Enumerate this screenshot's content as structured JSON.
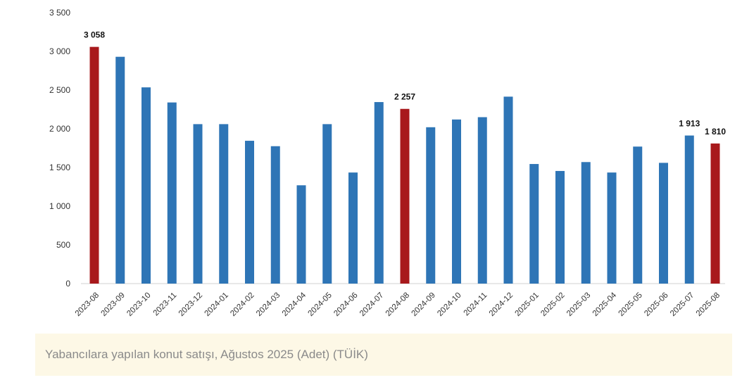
{
  "chart_data": {
    "type": "bar",
    "title": "",
    "xlabel": "",
    "ylabel": "",
    "ylim": [
      0,
      3500
    ],
    "yticks": [
      0,
      500,
      1000,
      1500,
      2000,
      2500,
      3000,
      3500
    ],
    "ytick_labels": [
      "0",
      "500",
      "1 000",
      "1 500",
      "2 000",
      "2 500",
      "3 000",
      "3 500"
    ],
    "grid": false,
    "legend": "none",
    "colors": {
      "default": "#2e75b6",
      "highlight": "#a8191c"
    },
    "categories": [
      "2023-08",
      "2023-09",
      "2023-10",
      "2023-11",
      "2023-12",
      "2024-01",
      "2024-02",
      "2024-03",
      "2024-04",
      "2024-05",
      "2024-06",
      "2024-07",
      "2024-08",
      "2024-09",
      "2024-10",
      "2024-11",
      "2024-12",
      "2025-01",
      "2025-02",
      "2025-03",
      "2025-04",
      "2025-05",
      "2025-06",
      "2025-07",
      "2025-08"
    ],
    "values": [
      3058,
      2930,
      2535,
      2340,
      2060,
      2060,
      1845,
      1775,
      1270,
      2060,
      1435,
      2345,
      2257,
      2020,
      2120,
      2150,
      2415,
      1545,
      1455,
      1570,
      1435,
      1770,
      1560,
      1913,
      1810
    ],
    "highlighted": [
      "2023-08",
      "2024-08",
      "2025-08"
    ],
    "data_labels": [
      {
        "category": "2023-08",
        "text": "3 058"
      },
      {
        "category": "2024-08",
        "text": "2 257"
      },
      {
        "category": "2025-07",
        "text": "1 913"
      },
      {
        "category": "2025-08",
        "text": "1 810"
      }
    ]
  },
  "caption": "Yabancılara yapılan konut satışı, Ağustos 2025 (Adet) (TÜİK)"
}
